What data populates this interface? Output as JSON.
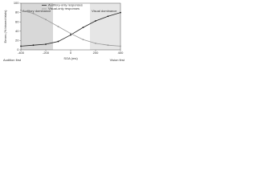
{
  "chart_data": {
    "type": "line",
    "x_label": "SOA (ms)",
    "y_label": "Errors (% binned trials)",
    "annotations": [
      "Auditory dominance",
      "Visual dominance",
      "Audition first",
      "Vision first"
    ],
    "x": [
      -400,
      -300,
      -200,
      -100,
      0,
      100,
      200,
      300,
      400
    ],
    "series": [
      {
        "name": "Auditory-only responses",
        "color": "#222222",
        "values": [
          8,
          10,
          12,
          18,
          32,
          48,
          62,
          72,
          80
        ]
      },
      {
        "name": "Visual-only responses",
        "color": "#999999",
        "values": [
          85,
          78,
          65,
          50,
          35,
          22,
          14,
          10,
          8
        ]
      }
    ],
    "xlim": [
      -400,
      400
    ],
    "xticks": [
      -400,
      -200,
      0,
      200,
      400
    ],
    "ylim": [
      0,
      100
    ],
    "yticks": [
      0,
      20,
      40,
      60,
      80,
      100
    ]
  }
}
